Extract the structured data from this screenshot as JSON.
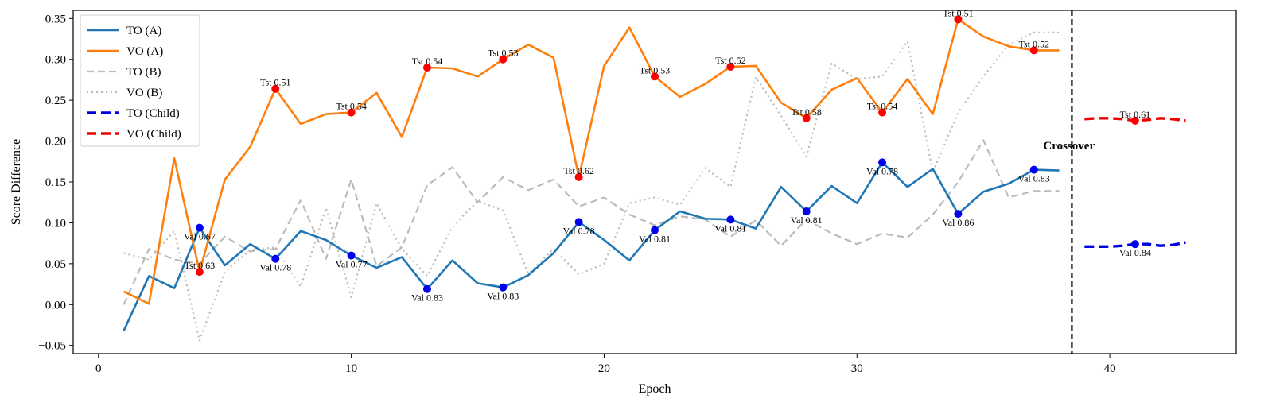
{
  "chart_data": {
    "type": "line",
    "title": "",
    "xlabel": "Epoch",
    "ylabel": "Score Difference",
    "xlim": [
      -1,
      45
    ],
    "ylim": [
      -0.06,
      0.36
    ],
    "xticks": [
      0,
      10,
      20,
      30,
      40
    ],
    "xtick_labels": [
      "0",
      "10",
      "20",
      "30",
      "40"
    ],
    "yticks": [
      -0.05,
      0.0,
      0.05,
      0.1,
      0.15,
      0.2,
      0.25,
      0.3,
      0.35
    ],
    "ytick_labels": [
      "−0.05",
      "0.00",
      "0.05",
      "0.10",
      "0.15",
      "0.20",
      "0.25",
      "0.30",
      "0.35"
    ],
    "legend_position": "top-left",
    "colors": {
      "to_a": "#1f77b4",
      "vo_a": "#ff7f0e",
      "parent_b": "#bbbbbb",
      "to_child": "#0000dd",
      "vo_child": "#ee0000",
      "marker_blue": "#0000ee",
      "marker_red": "#ff0000",
      "crossover_line": "#000000"
    },
    "series": [
      {
        "key": "to_a",
        "name": "TO (A)",
        "style": "solid",
        "x": [
          1,
          2,
          3,
          4,
          5,
          6,
          7,
          8,
          9,
          10,
          11,
          12,
          13,
          14,
          15,
          16,
          17,
          18,
          19,
          20,
          21,
          22,
          23,
          24,
          25,
          26,
          27,
          28,
          29,
          30,
          31,
          32,
          33,
          34,
          35,
          36,
          37,
          38
        ],
        "y": [
          -0.032,
          0.035,
          0.02,
          0.094,
          0.048,
          0.074,
          0.056,
          0.09,
          0.079,
          0.06,
          0.045,
          0.058,
          0.019,
          0.054,
          0.026,
          0.021,
          0.036,
          0.063,
          0.101,
          0.079,
          0.054,
          0.091,
          0.114,
          0.105,
          0.104,
          0.093,
          0.144,
          0.114,
          0.145,
          0.124,
          0.174,
          0.144,
          0.166,
          0.111,
          0.138,
          0.148,
          0.165,
          0.164
        ]
      },
      {
        "key": "vo_a",
        "name": "VO (A)",
        "style": "solid",
        "x": [
          1,
          2,
          3,
          4,
          5,
          6,
          7,
          8,
          9,
          10,
          11,
          12,
          13,
          14,
          15,
          16,
          17,
          18,
          19,
          20,
          21,
          22,
          23,
          24,
          25,
          26,
          27,
          28,
          29,
          30,
          31,
          32,
          33,
          34,
          35,
          36,
          37,
          38
        ],
        "y": [
          0.016,
          0.001,
          0.179,
          0.04,
          0.153,
          0.193,
          0.264,
          0.221,
          0.233,
          0.235,
          0.259,
          0.205,
          0.29,
          0.289,
          0.279,
          0.3,
          0.318,
          0.302,
          0.156,
          0.292,
          0.339,
          0.279,
          0.254,
          0.27,
          0.291,
          0.292,
          0.247,
          0.228,
          0.263,
          0.277,
          0.235,
          0.276,
          0.233,
          0.349,
          0.328,
          0.316,
          0.311,
          0.311
        ]
      },
      {
        "key": "to_b",
        "name": "TO (B)",
        "style": "dashed",
        "x": [
          1,
          2,
          3,
          4,
          5,
          6,
          7,
          8,
          9,
          10,
          11,
          12,
          13,
          14,
          15,
          16,
          17,
          18,
          19,
          20,
          21,
          22,
          23,
          24,
          25,
          26,
          27,
          28,
          29,
          30,
          31,
          32,
          33,
          34,
          35,
          36,
          37,
          38
        ],
        "y": [
          0.0,
          0.068,
          0.055,
          0.05,
          0.083,
          0.065,
          0.068,
          0.128,
          0.056,
          0.153,
          0.047,
          0.07,
          0.146,
          0.168,
          0.125,
          0.156,
          0.14,
          0.153,
          0.12,
          0.131,
          0.11,
          0.097,
          0.108,
          0.104,
          0.083,
          0.103,
          0.072,
          0.104,
          0.087,
          0.074,
          0.087,
          0.082,
          0.11,
          0.15,
          0.201,
          0.131,
          0.139,
          0.139
        ]
      },
      {
        "key": "vo_b",
        "name": "VO (B)",
        "style": "dotted",
        "x": [
          1,
          2,
          3,
          4,
          5,
          6,
          7,
          8,
          9,
          10,
          11,
          12,
          13,
          14,
          15,
          16,
          17,
          18,
          19,
          20,
          21,
          22,
          23,
          24,
          25,
          26,
          27,
          28,
          29,
          30,
          31,
          32,
          33,
          34,
          35,
          36,
          37,
          38
        ],
        "y": [
          0.063,
          0.055,
          0.09,
          -0.044,
          0.04,
          0.067,
          0.07,
          0.022,
          0.118,
          0.009,
          0.124,
          0.068,
          0.035,
          0.095,
          0.127,
          0.115,
          0.038,
          0.068,
          0.037,
          0.05,
          0.124,
          0.131,
          0.122,
          0.167,
          0.144,
          0.278,
          0.231,
          0.181,
          0.295,
          0.276,
          0.279,
          0.322,
          0.162,
          0.235,
          0.279,
          0.318,
          0.333,
          0.333
        ]
      },
      {
        "key": "to_child",
        "name": "TO (Child)",
        "style": "dashed",
        "x": [
          39,
          39.5,
          40,
          40.5,
          41,
          41.5,
          42,
          42.5,
          43
        ],
        "y": [
          0.071,
          0.071,
          0.071,
          0.072,
          0.074,
          0.074,
          0.072,
          0.073,
          0.076
        ]
      },
      {
        "key": "vo_child",
        "name": "VO (Child)",
        "style": "dashed",
        "x": [
          39,
          39.5,
          40,
          40.5,
          41,
          41.5,
          42,
          42.5,
          43
        ],
        "y": [
          0.227,
          0.228,
          0.228,
          0.227,
          0.225,
          0.226,
          0.228,
          0.227,
          0.225
        ]
      }
    ],
    "markers_val": [
      {
        "x": 4,
        "y": 0.094,
        "label": "Val 0.67"
      },
      {
        "x": 7,
        "y": 0.056,
        "label": "Val 0.78"
      },
      {
        "x": 10,
        "y": 0.06,
        "label": "Val 0.77"
      },
      {
        "x": 13,
        "y": 0.019,
        "label": "Val 0.83"
      },
      {
        "x": 16,
        "y": 0.021,
        "label": "Val 0.83"
      },
      {
        "x": 19,
        "y": 0.101,
        "label": "Val 0.78"
      },
      {
        "x": 22,
        "y": 0.091,
        "label": "Val 0.81"
      },
      {
        "x": 25,
        "y": 0.104,
        "label": "Val 0.81"
      },
      {
        "x": 28,
        "y": 0.114,
        "label": "Val 0.81"
      },
      {
        "x": 31,
        "y": 0.174,
        "label": "Val 0.78"
      },
      {
        "x": 34,
        "y": 0.111,
        "label": "Val 0.86"
      },
      {
        "x": 37,
        "y": 0.165,
        "label": "Val 0.83"
      },
      {
        "x": 41,
        "y": 0.074,
        "label": "Val 0.84"
      }
    ],
    "markers_tst": [
      {
        "x": 4,
        "y": 0.04,
        "label": "Tst 0.63"
      },
      {
        "x": 7,
        "y": 0.264,
        "label": "Tst 0.51"
      },
      {
        "x": 10,
        "y": 0.235,
        "label": "Tst 0.54"
      },
      {
        "x": 13,
        "y": 0.29,
        "label": "Tst 0.54"
      },
      {
        "x": 16,
        "y": 0.3,
        "label": "Tst 0.53"
      },
      {
        "x": 19,
        "y": 0.156,
        "label": "Tst 0.62"
      },
      {
        "x": 22,
        "y": 0.279,
        "label": "Tst 0.53"
      },
      {
        "x": 25,
        "y": 0.291,
        "label": "Tst 0.52"
      },
      {
        "x": 28,
        "y": 0.228,
        "label": "Tst 0.58"
      },
      {
        "x": 31,
        "y": 0.235,
        "label": "Tst 0.54"
      },
      {
        "x": 34,
        "y": 0.349,
        "label": "Tst 0.51"
      },
      {
        "x": 37,
        "y": 0.311,
        "label": "Tst 0.52"
      },
      {
        "x": 41,
        "y": 0.225,
        "label": "Tst 0.61"
      }
    ],
    "crossover": {
      "x": 38.5,
      "label": "Crossover"
    }
  }
}
